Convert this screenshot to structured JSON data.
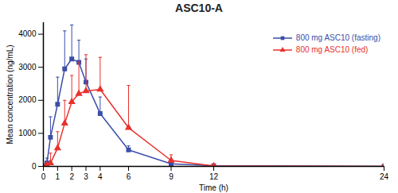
{
  "chart_data": {
    "type": "line",
    "title": "ASC10-A",
    "x_label": "Time (h)",
    "y_label": "Mean concentration (ng/mL)",
    "xlim": [
      0,
      24
    ],
    "xticks": [
      0,
      1,
      2,
      3,
      4,
      6,
      9,
      12,
      24
    ],
    "ylim": [
      0,
      4350
    ],
    "yticks": [
      0,
      1000,
      2000,
      3000,
      4000
    ],
    "grid": false,
    "legend": "upper right",
    "x": [
      0,
      0.25,
      0.5,
      1,
      1.5,
      2,
      2.5,
      3,
      4,
      6,
      9,
      12,
      24
    ],
    "series": [
      {
        "name": "800 mg ASC10 (fasting)",
        "color": "#3b4ea8",
        "marker": "square",
        "values": [
          0,
          100,
          880,
          1880,
          2950,
          3250,
          3150,
          2550,
          1600,
          500,
          80,
          20,
          0
        ],
        "errors": [
          null,
          150,
          620,
          820,
          1150,
          1030,
          670,
          700,
          500,
          120,
          60,
          null,
          null
        ]
      },
      {
        "name": "800 mg ASC10 (fed)",
        "color": "#e8322e",
        "marker": "triangle",
        "values": [
          0,
          30,
          100,
          550,
          1300,
          1950,
          2200,
          2280,
          2330,
          1170,
          180,
          10,
          0
        ],
        "errors": [
          null,
          60,
          300,
          500,
          700,
          800,
          950,
          1100,
          970,
          1280,
          170,
          null,
          null
        ]
      }
    ]
  }
}
